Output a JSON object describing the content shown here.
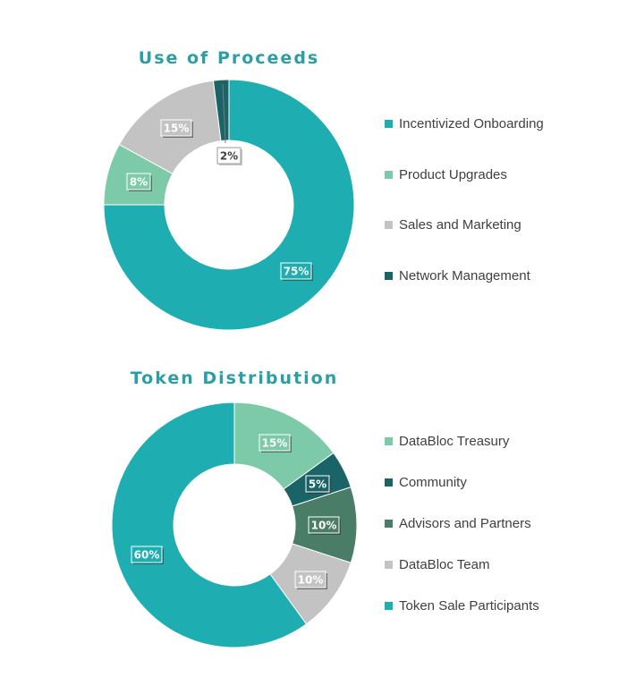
{
  "chart_data": [
    {
      "type": "pie",
      "title": "Use of Proceeds",
      "categories": [
        "Incentivized Onboarding",
        "Product Upgrades",
        "Sales and Marketing",
        "Network Management"
      ],
      "values": [
        75,
        8,
        15,
        2
      ],
      "data_labels": [
        "75%",
        "8%",
        "15%",
        "2%"
      ],
      "colors": [
        "#1eadb0",
        "#7dcaa9",
        "#c3c3c3",
        "#1a6367"
      ],
      "slice_order": [
        0,
        1,
        2,
        3
      ],
      "legend": "right",
      "donut": true
    },
    {
      "type": "pie",
      "title": "Token Distribution",
      "categories": [
        "DataBloc Treasury",
        "Community",
        "Advisors and Partners",
        "DataBloc Team",
        "Token Sale Participants"
      ],
      "values": [
        15,
        5,
        10,
        10,
        60
      ],
      "data_labels": [
        "15%",
        "5%",
        "10%",
        "10%",
        "60%"
      ],
      "colors": [
        "#7dcaa9",
        "#1a6367",
        "#4a7d68",
        "#c3c3c3",
        "#1eadb0"
      ],
      "slice_order": [
        0,
        1,
        2,
        3,
        4
      ],
      "legend": "right",
      "donut": true
    }
  ]
}
